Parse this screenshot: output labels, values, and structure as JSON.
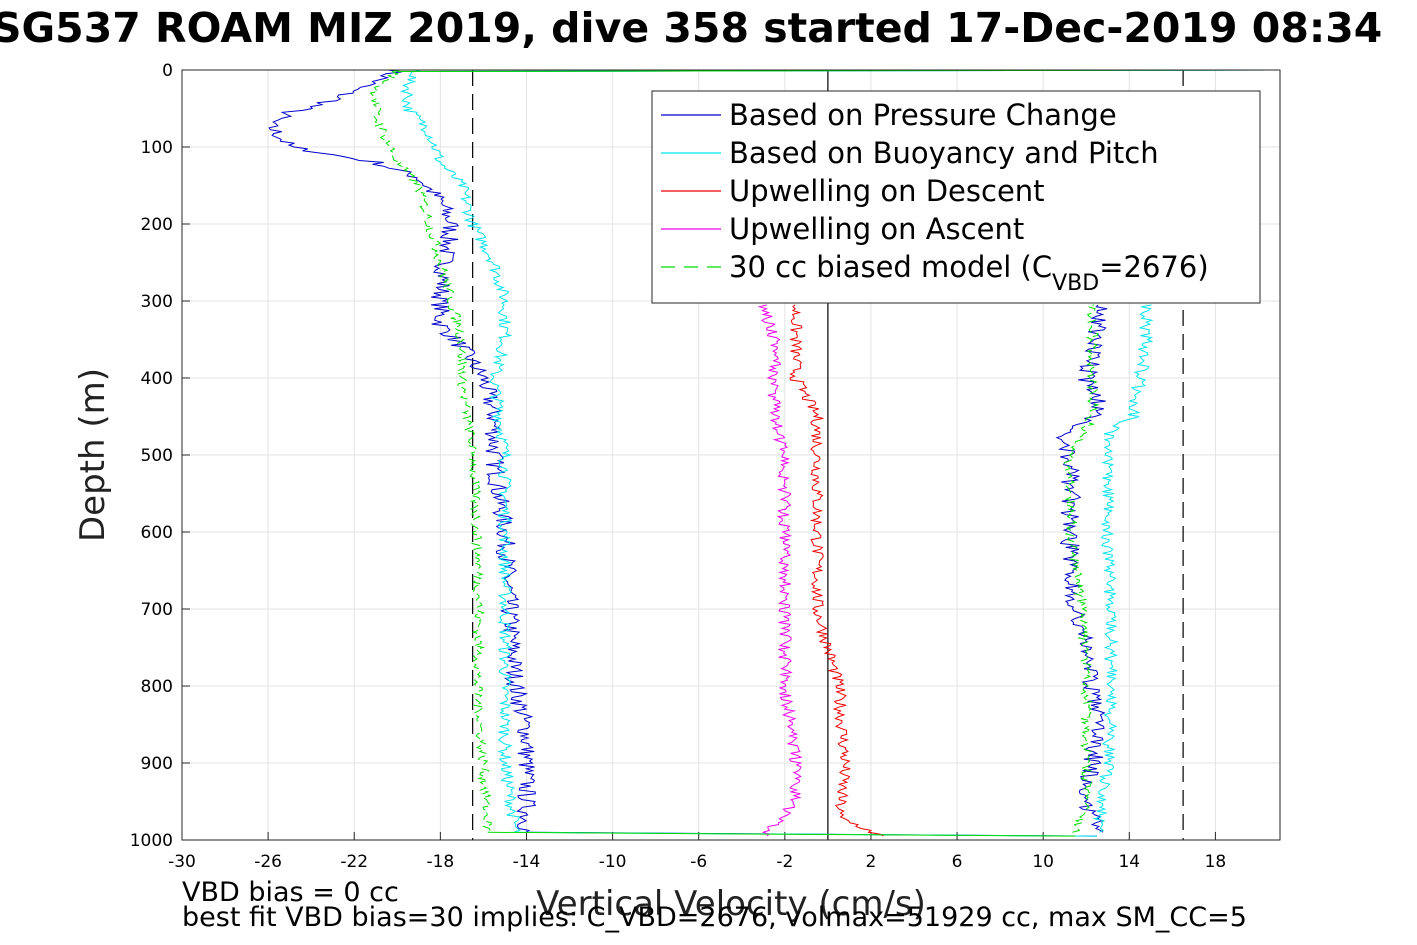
{
  "title": "SG537 ROAM MIZ 2019, dive 358 started 17-Dec-2019 08:34",
  "footer": {
    "line1": "VBD bias = 0 cc",
    "line2": "best fit VBD bias=30 implies: C_VBD=2676, volmax=51929 cc, max SM_CC=5"
  },
  "chart_data": {
    "type": "line",
    "xlabel": "Vertical Velocity (cm/s)",
    "ylabel": "Depth (m)",
    "xlim": [
      -30,
      21
    ],
    "ylim": [
      1000,
      0
    ],
    "y_reversed": true,
    "grid": true,
    "legend_position": "top-right",
    "x_ticks": [
      -30,
      -26,
      -22,
      -18,
      -14,
      -10,
      -6,
      -2,
      2,
      6,
      10,
      14,
      18
    ],
    "y_ticks": [
      0,
      100,
      200,
      300,
      400,
      500,
      600,
      700,
      800,
      900,
      1000
    ],
    "reference_lines": [
      {
        "x": 0,
        "style": "solid",
        "color": "#000000"
      },
      {
        "x": -16.5,
        "style": "dashed",
        "color": "#000000"
      },
      {
        "x": 16.5,
        "style": "dashed",
        "color": "#000000"
      }
    ],
    "legend": [
      {
        "label": "Based on Pressure Change",
        "color": "#0000cc",
        "dash": "solid"
      },
      {
        "label": "Based on Buoyancy and Pitch",
        "color": "#00e5ee",
        "dash": "solid"
      },
      {
        "label": "Upwelling on Descent",
        "color": "#ee0000",
        "dash": "solid"
      },
      {
        "label": "Upwelling on Ascent",
        "color": "#ee00ee",
        "dash": "solid"
      },
      {
        "label": "30 cc biased model (C",
        "sub": "VBD",
        "after": "=2676)",
        "color": "#00dd00",
        "dash": "dashed"
      }
    ],
    "series": [
      {
        "name": "Based on Pressure Change",
        "color": "#0000cc",
        "noise": 0.45,
        "descent": {
          "depth": [
            0,
            15,
            25,
            40,
            55,
            70,
            85,
            100,
            120,
            140,
            170,
            200,
            250,
            300,
            330,
            360,
            400,
            450,
            500,
            550,
            600,
            700,
            800,
            860,
            900,
            950,
            990
          ],
          "v": [
            -20,
            -21,
            -22,
            -23,
            -25,
            -26,
            -25.5,
            -25,
            -21,
            -19,
            -18,
            -17.5,
            -17.8,
            -18,
            -18,
            -17,
            -16,
            -15.5,
            -15.5,
            -15.3,
            -15,
            -14.8,
            -14.5,
            -14,
            -14,
            -14,
            -14
          ]
        },
        "ascent": {
          "depth": [
            990,
            950,
            900,
            860,
            800,
            750,
            700,
            650,
            600,
            550,
            500,
            475,
            460,
            440,
            420,
            400,
            380,
            360,
            340,
            320,
            305
          ],
          "v": [
            12.5,
            12,
            12.3,
            12.5,
            12.3,
            12,
            11.5,
            11.3,
            11.2,
            11.3,
            11.2,
            11,
            11.5,
            12.7,
            12.5,
            12,
            12.2,
            12.5,
            12.4,
            12.6,
            12.5
          ]
        }
      },
      {
        "name": "Based on Buoyancy and Pitch",
        "color": "#00e5ee",
        "noise": 0.3,
        "descent": {
          "depth": [
            0,
            15,
            25,
            50,
            80,
            120,
            150,
            200,
            250,
            300,
            350,
            400,
            500,
            600,
            700,
            800,
            900,
            990
          ],
          "v": [
            -19,
            -19.5,
            -19.5,
            -19.5,
            -18.5,
            -18,
            -17,
            -16.5,
            -15.5,
            -15,
            -15,
            -15.5,
            -15,
            -15,
            -15,
            -15,
            -15,
            -14.5
          ]
        },
        "ascent": {
          "depth": [
            990,
            950,
            900,
            800,
            700,
            600,
            500,
            470,
            450,
            400,
            350,
            305
          ],
          "v": [
            12.5,
            12.8,
            13,
            13.2,
            13.1,
            13,
            13,
            13,
            14.2,
            14.5,
            14.8,
            14.8
          ]
        }
      },
      {
        "name": "Upwelling on Descent",
        "color": "#ee0000",
        "noise": 0.3,
        "descent": {
          "depth": [
            305,
            330,
            360,
            380,
            400,
            450,
            500,
            600,
            700,
            800,
            900,
            970,
            995
          ],
          "v": [
            -1.5,
            -1.5,
            -1.5,
            -1.5,
            -1.5,
            -0.5,
            -0.5,
            -0.5,
            -0.5,
            0.5,
            0.8,
            0.5,
            2.5
          ]
        }
      },
      {
        "name": "Upwelling on Ascent",
        "color": "#ee00ee",
        "noise": 0.3,
        "ascent": {
          "depth": [
            995,
            950,
            900,
            800,
            700,
            600,
            500,
            450,
            400,
            350,
            305
          ],
          "v": [
            -3,
            -1.5,
            -1.5,
            -2,
            -2,
            -2,
            -2,
            -2.5,
            -2.5,
            -2.5,
            -3
          ]
        }
      },
      {
        "name": "30 cc biased model (CVBD=2676)",
        "color": "#00dd00",
        "dashed": true,
        "noise": 0.25,
        "descent": {
          "depth": [
            0,
            15,
            25,
            40,
            60,
            90,
            120,
            150,
            200,
            250,
            300,
            350,
            400,
            500,
            600,
            700,
            800,
            900,
            990
          ],
          "v": [
            -20,
            -20.5,
            -21,
            -21,
            -21,
            -20.5,
            -20,
            -19,
            -18.5,
            -18,
            -17.5,
            -17,
            -17,
            -16.5,
            -16.3,
            -16.2,
            -16.3,
            -16,
            -15.8
          ]
        },
        "ascent": {
          "depth": [
            990,
            950,
            900,
            800,
            700,
            600,
            500,
            450,
            400,
            350,
            305
          ],
          "v": [
            11.5,
            12,
            12,
            12,
            11.8,
            11.3,
            11.2,
            12.3,
            12.3,
            12.3,
            12.3
          ]
        }
      }
    ]
  }
}
